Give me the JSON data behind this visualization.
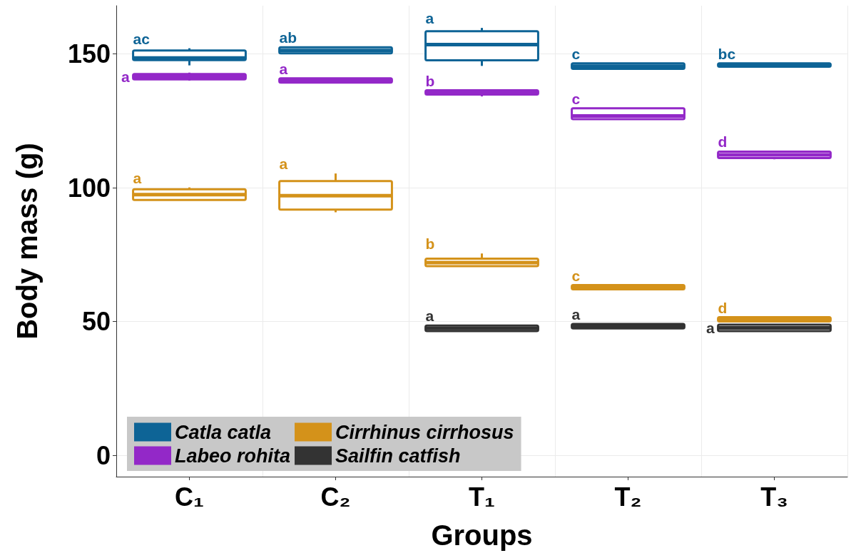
{
  "chart_data": {
    "type": "box",
    "xlabel": "Groups",
    "ylabel": "Body mass (g)",
    "categories": [
      "C₁",
      "C₂",
      "T₁",
      "T₂",
      "T₃"
    ],
    "ylim": [
      -8,
      168
    ],
    "yticks": [
      0,
      50,
      100,
      150
    ],
    "grid": true,
    "legend": "bottom left",
    "series": [
      {
        "name": "Catla catla",
        "color": "#0e6496",
        "value_labels": [
          "ac",
          "ab",
          "a",
          "c",
          "bc"
        ],
        "boxes": [
          {
            "low": 145.7,
            "q1": 147.7,
            "median": 148.5,
            "q3": 151.3,
            "high": 152.1
          },
          {
            "low": 150.2,
            "q1": 150.2,
            "median": 151.3,
            "q3": 152.5,
            "high": 152.5
          },
          {
            "low": 145.5,
            "q1": 147.6,
            "median": 153.5,
            "q3": 158.5,
            "high": 159.7
          },
          {
            "low": 144.4,
            "q1": 144.4,
            "median": 145.4,
            "q3": 146.5,
            "high": 146.5
          },
          {
            "low": 145.2,
            "q1": 145.2,
            "median": 145.8,
            "q3": 146.5,
            "high": 146.5
          }
        ]
      },
      {
        "name": "Labeo rohita",
        "color": "#9328c8",
        "value_labels": [
          "a",
          "a",
          "b",
          "c",
          "d"
        ],
        "boxes": [
          {
            "low": 140,
            "q1": 140.5,
            "median": 141.5,
            "q3": 142.5,
            "high": 143
          },
          {
            "low": 139.3,
            "q1": 139.3,
            "median": 140,
            "q3": 140.9,
            "high": 140.9
          },
          {
            "low": 134.1,
            "q1": 134.8,
            "median": 135.5,
            "q3": 136.4,
            "high": 136.4
          },
          {
            "low": 125.6,
            "q1": 125.6,
            "median": 126.8,
            "q3": 129.7,
            "high": 129.7
          },
          {
            "low": 110.6,
            "q1": 111.1,
            "median": 112.3,
            "q3": 113.5,
            "high": 113.5
          }
        ]
      },
      {
        "name": "Cirrhinus cirrhosus",
        "color": "#d4921a",
        "value_labels": [
          "a",
          "a",
          "b",
          "c",
          "d"
        ],
        "boxes": [
          {
            "low": 95.4,
            "q1": 95.4,
            "median": 97.4,
            "q3": 99.4,
            "high": 100.1
          },
          {
            "low": 90.8,
            "q1": 91.8,
            "median": 97,
            "q3": 102.5,
            "high": 105.3
          },
          {
            "low": 70.7,
            "q1": 70.7,
            "median": 72,
            "q3": 73.5,
            "high": 75.4
          },
          {
            "low": 62,
            "q1": 62,
            "median": 62.8,
            "q3": 63.6,
            "high": 63.6
          },
          {
            "low": 50,
            "q1": 50,
            "median": 50.8,
            "q3": 51.6,
            "high": 51.6
          }
        ]
      },
      {
        "name": "Sailfin catfish",
        "color": "#333333",
        "value_labels": [
          null,
          null,
          "a",
          "a",
          "a"
        ],
        "boxes": [
          null,
          null,
          {
            "low": 46.4,
            "q1": 46.4,
            "median": 47.4,
            "q3": 48.5,
            "high": 48.5
          },
          {
            "low": 47.4,
            "q1": 47.4,
            "median": 48.2,
            "q3": 49.1,
            "high": 49.1
          },
          {
            "low": 46.4,
            "q1": 46.4,
            "median": 47.6,
            "q3": 48.8,
            "high": 48.8
          }
        ]
      }
    ]
  }
}
